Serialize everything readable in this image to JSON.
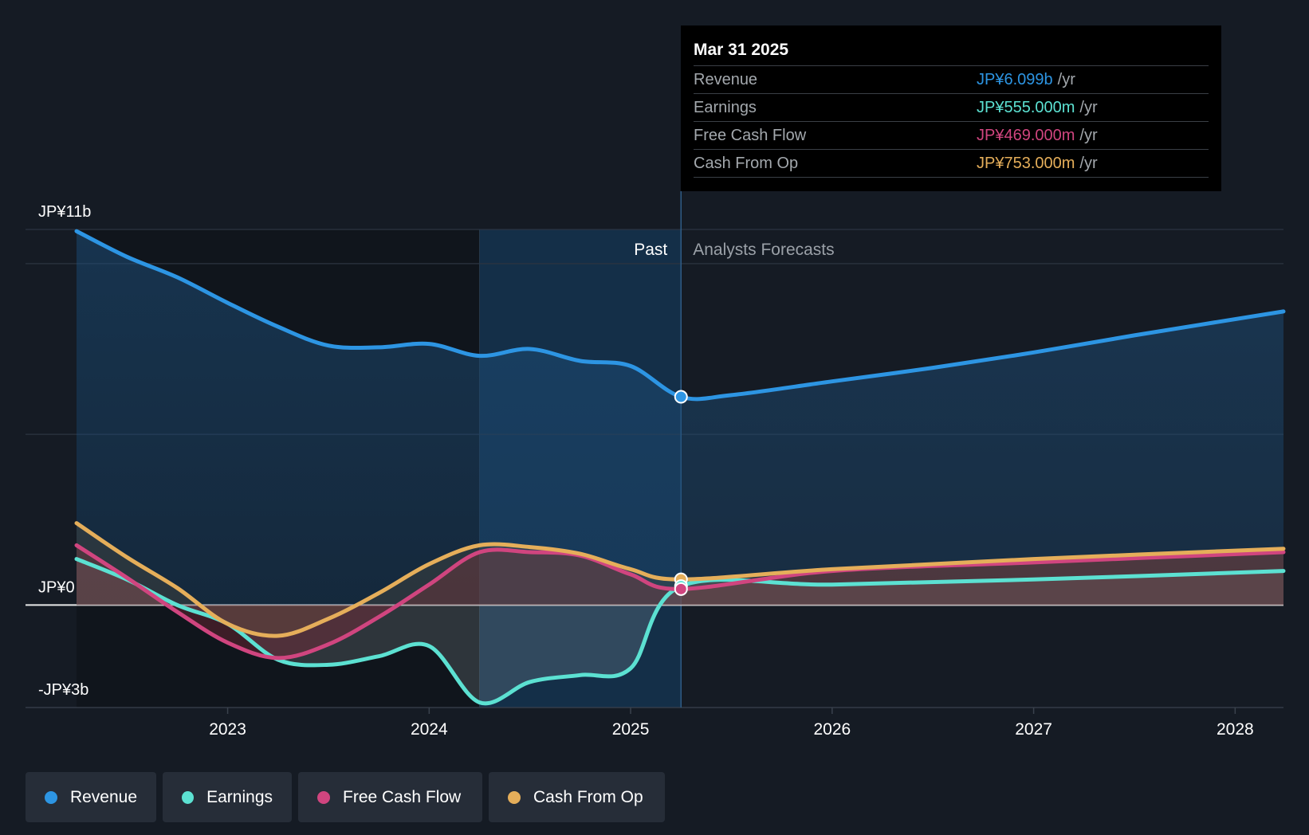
{
  "chart_data": {
    "type": "area",
    "title": "",
    "currency_unit": "JP¥ billions",
    "y_axis_labels": {
      "top": "JP¥11b",
      "zero": "JP¥0",
      "bottom": "-JP¥3b"
    },
    "ylim": [
      -3,
      11
    ],
    "x_ticks": [
      "2023",
      "2024",
      "2025",
      "2026",
      "2027",
      "2028"
    ],
    "x_tick_values": [
      2023,
      2024,
      2025,
      2026,
      2027,
      2028
    ],
    "xlim": [
      2022.0,
      2028.24
    ],
    "past_label": "Past",
    "forecast_label": "Analysts Forecasts",
    "divider_x": 2025.25,
    "highlight_start_x": 2024.25,
    "series": [
      {
        "name": "Revenue",
        "color": "#2d95e3",
        "x": [
          2022.25,
          2022.5,
          2022.75,
          2023.0,
          2023.25,
          2023.5,
          2023.75,
          2024.0,
          2024.25,
          2024.5,
          2024.75,
          2025.0,
          2025.25,
          2025.5,
          2026.0,
          2026.5,
          2027.0,
          2027.5,
          2028.24
        ],
        "values": [
          10.95,
          10.2,
          9.6,
          8.85,
          8.15,
          7.6,
          7.55,
          7.65,
          7.3,
          7.5,
          7.15,
          7.0,
          6.099,
          6.15,
          6.55,
          6.95,
          7.4,
          7.9,
          8.6
        ]
      },
      {
        "name": "Earnings",
        "color": "#5ce1d2",
        "x": [
          2022.25,
          2022.5,
          2022.75,
          2023.0,
          2023.25,
          2023.5,
          2023.75,
          2024.0,
          2024.25,
          2024.5,
          2024.75,
          2025.0,
          2025.25,
          2026.0,
          2027.0,
          2028.24
        ],
        "values": [
          1.35,
          0.75,
          0,
          -0.55,
          -1.6,
          -1.75,
          -1.5,
          -1.2,
          -2.85,
          -2.25,
          -2.05,
          -1.85,
          0.555,
          0.6,
          0.75,
          1.0
        ]
      },
      {
        "name": "Free Cash Flow",
        "color": "#d0457f",
        "x": [
          2022.25,
          2022.5,
          2022.75,
          2023.0,
          2023.25,
          2023.5,
          2023.75,
          2024.0,
          2024.25,
          2024.5,
          2024.75,
          2025.0,
          2025.25,
          2026.0,
          2027.0,
          2028.24
        ],
        "values": [
          1.75,
          0.8,
          -0.2,
          -1.1,
          -1.55,
          -1.15,
          -0.35,
          0.6,
          1.55,
          1.55,
          1.45,
          0.9,
          0.469,
          1.0,
          1.25,
          1.55
        ]
      },
      {
        "name": "Cash From Op",
        "color": "#e5ae5a",
        "x": [
          2022.25,
          2022.5,
          2022.75,
          2023.0,
          2023.25,
          2023.5,
          2023.75,
          2024.0,
          2024.25,
          2024.5,
          2024.75,
          2025.0,
          2025.25,
          2026.0,
          2027.0,
          2028.24
        ],
        "values": [
          2.4,
          1.4,
          0.5,
          -0.55,
          -0.9,
          -0.4,
          0.35,
          1.2,
          1.75,
          1.7,
          1.5,
          1.05,
          0.753,
          1.05,
          1.35,
          1.65
        ]
      }
    ],
    "highlight_point_x": 2025.25
  },
  "tooltip": {
    "date": "Mar 31 2025",
    "rows": [
      {
        "label": "Revenue",
        "value": "JP¥6.099b",
        "unit": "/yr",
        "color": "#2d95e3"
      },
      {
        "label": "Earnings",
        "value": "JP¥555.000m",
        "unit": "/yr",
        "color": "#5ce1d2"
      },
      {
        "label": "Free Cash Flow",
        "value": "JP¥469.000m",
        "unit": "/yr",
        "color": "#d0457f"
      },
      {
        "label": "Cash From Op",
        "value": "JP¥753.000m",
        "unit": "/yr",
        "color": "#e5ae5a"
      }
    ]
  },
  "legend": [
    {
      "label": "Revenue",
      "color": "#2d95e3"
    },
    {
      "label": "Earnings",
      "color": "#5ce1d2"
    },
    {
      "label": "Free Cash Flow",
      "color": "#d0457f"
    },
    {
      "label": "Cash From Op",
      "color": "#e5ae5a"
    }
  ]
}
